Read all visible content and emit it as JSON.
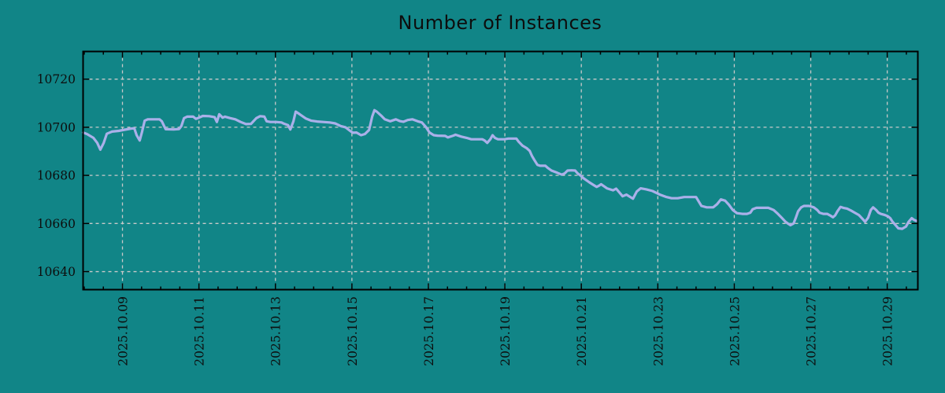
{
  "colors": {
    "background": "#118587",
    "line": "#aab0e9",
    "grid": "#c9c9c9",
    "axis": "#000000",
    "text": "#0d0d0d"
  },
  "chart_data": {
    "type": "line",
    "title": "Number of Instances",
    "xlabel": "",
    "ylabel": "",
    "grid": true,
    "legend_position": "none",
    "x_axis": {
      "unit": "date",
      "xlim_days": [
        7.97,
        29.8
      ],
      "tick_days": [
        9,
        11,
        13,
        15,
        17,
        19,
        21,
        23,
        25,
        27,
        29
      ],
      "tick_labels": [
        "2025.10.09",
        "2025.10.11",
        "2025.10.13",
        "2025.10.15",
        "2025.10.17",
        "2025.10.19",
        "2025.10.21",
        "2025.10.23",
        "2025.10.25",
        "2025.10.27",
        "2025.10.29"
      ],
      "minor_tick_step_days": 0.5
    },
    "y_axis": {
      "ylim": [
        10632.5,
        10731.5
      ],
      "ticks": [
        10640,
        10660,
        10680,
        10700,
        10720
      ],
      "tick_labels": [
        "10640",
        "10660",
        "10680",
        "10700",
        "10720"
      ]
    },
    "series": [
      {
        "name": "instances",
        "points": [
          [
            7.97,
            10697.8
          ],
          [
            8.07,
            10697.2
          ],
          [
            8.24,
            10695.6
          ],
          [
            8.34,
            10693.5
          ],
          [
            8.42,
            10690.7
          ],
          [
            8.51,
            10693.5
          ],
          [
            8.59,
            10697.3
          ],
          [
            8.73,
            10698.2
          ],
          [
            8.9,
            10698.5
          ],
          [
            9.06,
            10699.0
          ],
          [
            9.25,
            10699.5
          ],
          [
            9.31,
            10699.5
          ],
          [
            9.37,
            10696.7
          ],
          [
            9.45,
            10694.5
          ],
          [
            9.51,
            10698.0
          ],
          [
            9.58,
            10702.7
          ],
          [
            9.66,
            10703.3
          ],
          [
            9.82,
            10703.3
          ],
          [
            9.97,
            10703.3
          ],
          [
            10.03,
            10702.5
          ],
          [
            10.07,
            10701.1
          ],
          [
            10.13,
            10699.2
          ],
          [
            10.34,
            10699.1
          ],
          [
            10.48,
            10699.3
          ],
          [
            10.54,
            10700.5
          ],
          [
            10.61,
            10703.8
          ],
          [
            10.69,
            10704.4
          ],
          [
            10.85,
            10704.4
          ],
          [
            10.92,
            10703.5
          ],
          [
            11.0,
            10704.0
          ],
          [
            11.1,
            10704.7
          ],
          [
            11.27,
            10704.6
          ],
          [
            11.41,
            10704.2
          ],
          [
            11.47,
            10702.2
          ],
          [
            11.53,
            10705.4
          ],
          [
            11.62,
            10704.0
          ],
          [
            11.68,
            10704.4
          ],
          [
            11.82,
            10703.8
          ],
          [
            11.95,
            10703.3
          ],
          [
            12.09,
            10702.2
          ],
          [
            12.23,
            10701.3
          ],
          [
            12.36,
            10701.4
          ],
          [
            12.5,
            10703.8
          ],
          [
            12.6,
            10704.6
          ],
          [
            12.71,
            10704.4
          ],
          [
            12.77,
            10702.5
          ],
          [
            12.87,
            10702.2
          ],
          [
            13.02,
            10702.2
          ],
          [
            13.16,
            10702.0
          ],
          [
            13.22,
            10701.5
          ],
          [
            13.33,
            10700.9
          ],
          [
            13.39,
            10699.1
          ],
          [
            13.47,
            10702.5
          ],
          [
            13.53,
            10706.5
          ],
          [
            13.59,
            10705.9
          ],
          [
            13.68,
            10704.9
          ],
          [
            13.8,
            10703.6
          ],
          [
            13.94,
            10702.7
          ],
          [
            14.09,
            10702.4
          ],
          [
            14.25,
            10702.2
          ],
          [
            14.42,
            10702.0
          ],
          [
            14.56,
            10701.6
          ],
          [
            14.71,
            10700.5
          ],
          [
            14.83,
            10700.0
          ],
          [
            14.97,
            10698.3
          ],
          [
            15.03,
            10697.7
          ],
          [
            15.12,
            10697.8
          ],
          [
            15.24,
            10696.7
          ],
          [
            15.34,
            10697.2
          ],
          [
            15.45,
            10698.9
          ],
          [
            15.53,
            10704.4
          ],
          [
            15.59,
            10707.1
          ],
          [
            15.65,
            10706.5
          ],
          [
            15.76,
            10704.9
          ],
          [
            15.86,
            10703.3
          ],
          [
            16.0,
            10702.5
          ],
          [
            16.15,
            10703.3
          ],
          [
            16.25,
            10702.6
          ],
          [
            16.35,
            10702.3
          ],
          [
            16.46,
            10703.0
          ],
          [
            16.58,
            10703.3
          ],
          [
            16.72,
            10702.5
          ],
          [
            16.83,
            10702.0
          ],
          [
            16.93,
            10700.2
          ],
          [
            17.03,
            10697.8
          ],
          [
            17.14,
            10696.7
          ],
          [
            17.24,
            10696.5
          ],
          [
            17.44,
            10696.4
          ],
          [
            17.51,
            10695.8
          ],
          [
            17.65,
            10696.5
          ],
          [
            17.71,
            10696.9
          ],
          [
            17.86,
            10696.1
          ],
          [
            18.0,
            10695.6
          ],
          [
            18.12,
            10695.0
          ],
          [
            18.27,
            10695.0
          ],
          [
            18.41,
            10695.0
          ],
          [
            18.47,
            10694.5
          ],
          [
            18.54,
            10693.5
          ],
          [
            18.62,
            10695.0
          ],
          [
            18.68,
            10696.7
          ],
          [
            18.74,
            10695.6
          ],
          [
            18.82,
            10695.0
          ],
          [
            18.99,
            10695.0
          ],
          [
            19.09,
            10695.3
          ],
          [
            19.3,
            10695.3
          ],
          [
            19.36,
            10694.0
          ],
          [
            19.46,
            10692.4
          ],
          [
            19.57,
            10691.3
          ],
          [
            19.65,
            10690.2
          ],
          [
            19.71,
            10688.0
          ],
          [
            19.77,
            10686.4
          ],
          [
            19.85,
            10684.4
          ],
          [
            19.92,
            10684.0
          ],
          [
            20.06,
            10684.0
          ],
          [
            20.12,
            10683.1
          ],
          [
            20.22,
            10682.0
          ],
          [
            20.37,
            10681.1
          ],
          [
            20.49,
            10680.3
          ],
          [
            20.57,
            10680.9
          ],
          [
            20.64,
            10682.0
          ],
          [
            20.74,
            10682.1
          ],
          [
            20.84,
            10682.0
          ],
          [
            20.9,
            10680.9
          ],
          [
            20.99,
            10679.8
          ],
          [
            21.05,
            10678.9
          ],
          [
            21.15,
            10677.8
          ],
          [
            21.21,
            10677.1
          ],
          [
            21.32,
            10676.0
          ],
          [
            21.4,
            10675.2
          ],
          [
            21.46,
            10675.7
          ],
          [
            21.52,
            10676.3
          ],
          [
            21.67,
            10674.6
          ],
          [
            21.83,
            10673.8
          ],
          [
            21.91,
            10674.5
          ],
          [
            22.08,
            10671.3
          ],
          [
            22.18,
            10672.0
          ],
          [
            22.35,
            10670.3
          ],
          [
            22.45,
            10673.3
          ],
          [
            22.55,
            10674.6
          ],
          [
            22.7,
            10674.2
          ],
          [
            22.86,
            10673.5
          ],
          [
            23.07,
            10671.9
          ],
          [
            23.21,
            10671.1
          ],
          [
            23.36,
            10670.5
          ],
          [
            23.52,
            10670.5
          ],
          [
            23.69,
            10671.0
          ],
          [
            23.83,
            10671.0
          ],
          [
            24.0,
            10671.0
          ],
          [
            24.14,
            10667.3
          ],
          [
            24.28,
            10666.7
          ],
          [
            24.45,
            10666.7
          ],
          [
            24.55,
            10668.0
          ],
          [
            24.65,
            10670.0
          ],
          [
            24.76,
            10669.5
          ],
          [
            24.86,
            10667.8
          ],
          [
            24.96,
            10665.6
          ],
          [
            25.07,
            10664.3
          ],
          [
            25.21,
            10664.0
          ],
          [
            25.33,
            10664.0
          ],
          [
            25.42,
            10664.5
          ],
          [
            25.48,
            10665.9
          ],
          [
            25.58,
            10666.5
          ],
          [
            25.74,
            10666.5
          ],
          [
            25.89,
            10666.5
          ],
          [
            26.03,
            10665.6
          ],
          [
            26.14,
            10664.0
          ],
          [
            26.24,
            10662.4
          ],
          [
            26.34,
            10660.7
          ],
          [
            26.4,
            10660.0
          ],
          [
            26.47,
            10659.3
          ],
          [
            26.55,
            10660.0
          ],
          [
            26.61,
            10662.4
          ],
          [
            26.67,
            10665.1
          ],
          [
            26.75,
            10666.7
          ],
          [
            26.82,
            10667.3
          ],
          [
            26.96,
            10667.3
          ],
          [
            27.08,
            10666.7
          ],
          [
            27.17,
            10665.6
          ],
          [
            27.23,
            10664.5
          ],
          [
            27.33,
            10664.0
          ],
          [
            27.43,
            10664.0
          ],
          [
            27.5,
            10663.4
          ],
          [
            27.58,
            10662.6
          ],
          [
            27.64,
            10663.4
          ],
          [
            27.7,
            10665.1
          ],
          [
            27.78,
            10666.9
          ],
          [
            27.85,
            10666.5
          ],
          [
            27.95,
            10666.2
          ],
          [
            28.05,
            10665.4
          ],
          [
            28.15,
            10664.5
          ],
          [
            28.26,
            10663.5
          ],
          [
            28.36,
            10661.8
          ],
          [
            28.42,
            10660.7
          ],
          [
            28.5,
            10662.4
          ],
          [
            28.57,
            10665.6
          ],
          [
            28.63,
            10666.7
          ],
          [
            28.71,
            10665.6
          ],
          [
            28.77,
            10664.5
          ],
          [
            28.83,
            10664.0
          ],
          [
            28.94,
            10663.5
          ],
          [
            29.02,
            10663.0
          ],
          [
            29.08,
            10662.2
          ],
          [
            29.14,
            10660.7
          ],
          [
            29.23,
            10659.1
          ],
          [
            29.29,
            10658.0
          ],
          [
            29.39,
            10657.8
          ],
          [
            29.49,
            10658.7
          ],
          [
            29.56,
            10660.7
          ],
          [
            29.64,
            10662.2
          ],
          [
            29.7,
            10661.5
          ],
          [
            29.76,
            10661.1
          ]
        ]
      }
    ]
  }
}
